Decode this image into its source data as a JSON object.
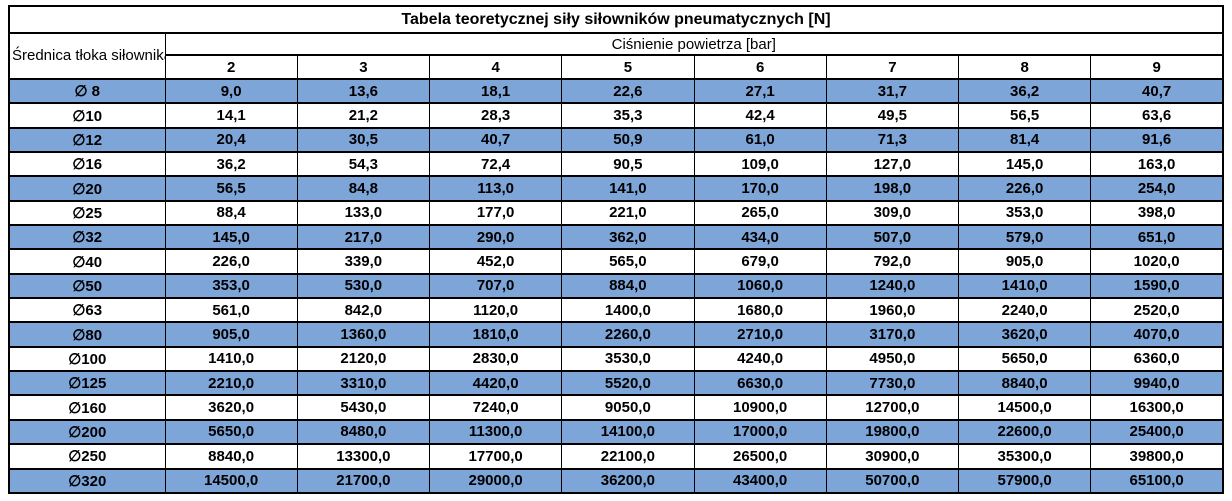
{
  "table": {
    "title": "Tabela teoretycznej siły siłowników pneumatycznych [N]",
    "diameter_header": "Średnica tłoka siłownika",
    "pressure_header": "Ciśnienie powietrza [bar]",
    "pressure_columns": [
      "2",
      "3",
      "4",
      "5",
      "6",
      "7",
      "8",
      "9"
    ],
    "rows": [
      {
        "diameter": "∅ 8",
        "values": [
          "9,0",
          "13,6",
          "18,1",
          "22,6",
          "27,1",
          "31,7",
          "36,2",
          "40,7"
        ]
      },
      {
        "diameter": "∅10",
        "values": [
          "14,1",
          "21,2",
          "28,3",
          "35,3",
          "42,4",
          "49,5",
          "56,5",
          "63,6"
        ]
      },
      {
        "diameter": "∅12",
        "values": [
          "20,4",
          "30,5",
          "40,7",
          "50,9",
          "61,0",
          "71,3",
          "81,4",
          "91,6"
        ]
      },
      {
        "diameter": "∅16",
        "values": [
          "36,2",
          "54,3",
          "72,4",
          "90,5",
          "109,0",
          "127,0",
          "145,0",
          "163,0"
        ]
      },
      {
        "diameter": "∅20",
        "values": [
          "56,5",
          "84,8",
          "113,0",
          "141,0",
          "170,0",
          "198,0",
          "226,0",
          "254,0"
        ]
      },
      {
        "diameter": "∅25",
        "values": [
          "88,4",
          "133,0",
          "177,0",
          "221,0",
          "265,0",
          "309,0",
          "353,0",
          "398,0"
        ]
      },
      {
        "diameter": "∅32",
        "values": [
          "145,0",
          "217,0",
          "290,0",
          "362,0",
          "434,0",
          "507,0",
          "579,0",
          "651,0"
        ]
      },
      {
        "diameter": "∅40",
        "values": [
          "226,0",
          "339,0",
          "452,0",
          "565,0",
          "679,0",
          "792,0",
          "905,0",
          "1020,0"
        ]
      },
      {
        "diameter": "∅50",
        "values": [
          "353,0",
          "530,0",
          "707,0",
          "884,0",
          "1060,0",
          "1240,0",
          "1410,0",
          "1590,0"
        ]
      },
      {
        "diameter": "∅63",
        "values": [
          "561,0",
          "842,0",
          "1120,0",
          "1400,0",
          "1680,0",
          "1960,0",
          "2240,0",
          "2520,0"
        ]
      },
      {
        "diameter": "∅80",
        "values": [
          "905,0",
          "1360,0",
          "1810,0",
          "2260,0",
          "2710,0",
          "3170,0",
          "3620,0",
          "4070,0"
        ]
      },
      {
        "diameter": "∅100",
        "values": [
          "1410,0",
          "2120,0",
          "2830,0",
          "3530,0",
          "4240,0",
          "4950,0",
          "5650,0",
          "6360,0"
        ]
      },
      {
        "diameter": "∅125",
        "values": [
          "2210,0",
          "3310,0",
          "4420,0",
          "5520,0",
          "6630,0",
          "7730,0",
          "8840,0",
          "9940,0"
        ]
      },
      {
        "diameter": "∅160",
        "values": [
          "3620,0",
          "5430,0",
          "7240,0",
          "9050,0",
          "10900,0",
          "12700,0",
          "14500,0",
          "16300,0"
        ]
      },
      {
        "diameter": "∅200",
        "values": [
          "5650,0",
          "8480,0",
          "11300,0",
          "14100,0",
          "17000,0",
          "19800,0",
          "22600,0",
          "25400,0"
        ]
      },
      {
        "diameter": "∅250",
        "values": [
          "8840,0",
          "13300,0",
          "17700,0",
          "22100,0",
          "26500,0",
          "30900,0",
          "35300,0",
          "39800,0"
        ]
      },
      {
        "diameter": "∅320",
        "values": [
          "14500,0",
          "21700,0",
          "29000,0",
          "36200,0",
          "43400,0",
          "50700,0",
          "57900,0",
          "65100,0"
        ]
      }
    ]
  },
  "colors": {
    "row_highlight": "#7EA5D8",
    "border": "#000000",
    "background": "#FFFFFF",
    "text": "#000000"
  }
}
